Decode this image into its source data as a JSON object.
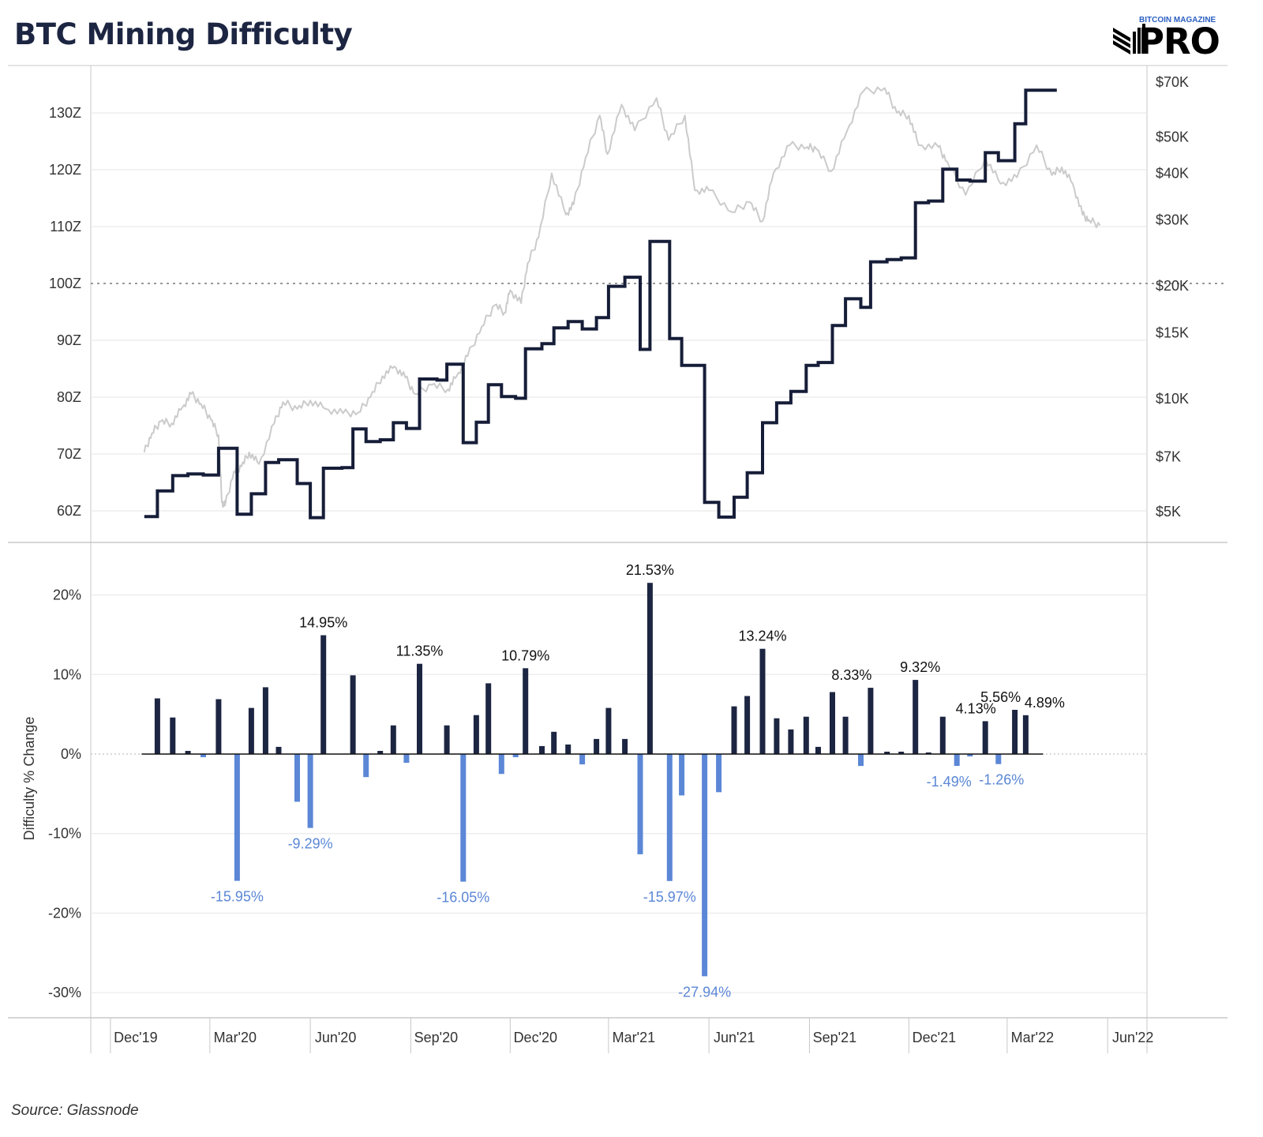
{
  "title": "BTC Mining Difficulty",
  "logo": {
    "top": "BITCOIN MAGAZINE",
    "main": "PRO"
  },
  "source": "Source: Glassnode",
  "colors": {
    "difficulty": "#161d38",
    "price": "#cbcbcb",
    "positive": "#1c2541",
    "negative": "#5b87d6",
    "grid": "#e6e6e6",
    "axis": "#c8c8c8"
  },
  "chart_data": [
    {
      "type": "line",
      "title": "",
      "x_ticks": [
        "Dec'19",
        "Mar'20",
        "Jun'20",
        "Sep'20",
        "Dec'20",
        "Mar'21",
        "Jun'21",
        "Sep'21",
        "Dec'21",
        "Mar'22",
        "Jun'22"
      ],
      "ylabel": "",
      "y_ticks": [
        "60Z",
        "70Z",
        "80Z",
        "90Z",
        "100Z",
        "110Z",
        "120Z",
        "130Z"
      ],
      "ylim": [
        56,
        138
      ],
      "y2_ticks": [
        "$5K",
        "$7K",
        "$10K",
        "$15K",
        "$20K",
        "$30K",
        "$40K",
        "$50K",
        "$70K"
      ],
      "y2_log_scale": true,
      "reference_line": {
        "axis": "y",
        "value": 100,
        "style": "dotted"
      },
      "grid": true,
      "series": [
        {
          "role": "difficulty",
          "axis": "left",
          "step": true,
          "points": [
            [
              "2020-01-01",
              59.0
            ],
            [
              "2020-01-13",
              63.5
            ],
            [
              "2020-01-27",
              66.2
            ],
            [
              "2020-02-10",
              66.5
            ],
            [
              "2020-02-24",
              66.3
            ],
            [
              "2020-03-09",
              71.0
            ],
            [
              "2020-03-26",
              59.4
            ],
            [
              "2020-04-08",
              63.0
            ],
            [
              "2020-04-21",
              68.5
            ],
            [
              "2020-05-03",
              69.0
            ],
            [
              "2020-05-20",
              64.8
            ],
            [
              "2020-06-01",
              58.8
            ],
            [
              "2020-06-13",
              67.5
            ],
            [
              "2020-06-30",
              67.6
            ],
            [
              "2020-07-10",
              74.4
            ],
            [
              "2020-07-22",
              72.2
            ],
            [
              "2020-08-04",
              72.5
            ],
            [
              "2020-08-16",
              75.5
            ],
            [
              "2020-08-28",
              74.5
            ],
            [
              "2020-09-09",
              83.2
            ],
            [
              "2020-09-25",
              83.0
            ],
            [
              "2020-10-04",
              85.8
            ],
            [
              "2020-10-19",
              72.0
            ],
            [
              "2020-10-31",
              75.6
            ],
            [
              "2020-11-11",
              82.2
            ],
            [
              "2020-11-23",
              80.1
            ],
            [
              "2020-12-06",
              79.8
            ],
            [
              "2020-12-15",
              88.5
            ],
            [
              "2020-12-30",
              89.4
            ],
            [
              "2021-01-10",
              92.2
            ],
            [
              "2021-01-23",
              93.3
            ],
            [
              "2021-02-05",
              92.0
            ],
            [
              "2021-02-18",
              94.0
            ],
            [
              "2021-03-01",
              99.5
            ],
            [
              "2021-03-16",
              101.1
            ],
            [
              "2021-03-30",
              88.4
            ],
            [
              "2021-04-08",
              107.4
            ],
            [
              "2021-04-26",
              90.3
            ],
            [
              "2021-05-07",
              85.6
            ],
            [
              "2021-05-28",
              61.5
            ],
            [
              "2021-06-10",
              58.9
            ],
            [
              "2021-06-24",
              62.4
            ],
            [
              "2021-07-06",
              66.7
            ],
            [
              "2021-07-20",
              75.5
            ],
            [
              "2021-08-02",
              79.0
            ],
            [
              "2021-08-15",
              81.0
            ],
            [
              "2021-08-29",
              85.6
            ],
            [
              "2021-09-09",
              86.1
            ],
            [
              "2021-09-22",
              92.6
            ],
            [
              "2021-10-04",
              97.3
            ],
            [
              "2021-10-18",
              95.8
            ],
            [
              "2021-10-27",
              103.8
            ],
            [
              "2021-11-11",
              104.2
            ],
            [
              "2021-11-24",
              104.5
            ],
            [
              "2021-12-07",
              114.2
            ],
            [
              "2021-12-19",
              114.5
            ],
            [
              "2022-01-01",
              120.1
            ],
            [
              "2022-01-14",
              118.2
            ],
            [
              "2022-01-26",
              118.0
            ],
            [
              "2022-02-09",
              123.0
            ],
            [
              "2022-02-21",
              121.6
            ],
            [
              "2022-03-08",
              128.1
            ],
            [
              "2022-03-18",
              134.0
            ],
            [
              "2022-04-01",
              134.0
            ]
          ]
        },
        {
          "role": "price",
          "axis": "right",
          "step": false,
          "points": [
            [
              "2020-01-01",
              7200
            ],
            [
              "2020-01-08",
              8100
            ],
            [
              "2020-01-16",
              8700
            ],
            [
              "2020-01-26",
              8600
            ],
            [
              "2020-02-05",
              9500
            ],
            [
              "2020-02-13",
              10300
            ],
            [
              "2020-02-22",
              9700
            ],
            [
              "2020-03-02",
              8800
            ],
            [
              "2020-03-09",
              8000
            ],
            [
              "2020-03-12",
              5300
            ],
            [
              "2020-03-15",
              5200
            ],
            [
              "2020-03-23",
              6400
            ],
            [
              "2020-03-30",
              6600
            ],
            [
              "2020-04-06",
              7200
            ],
            [
              "2020-04-15",
              6700
            ],
            [
              "2020-04-29",
              8600
            ],
            [
              "2020-05-07",
              9800
            ],
            [
              "2020-05-20",
              9400
            ],
            [
              "2020-06-01",
              9900
            ],
            [
              "2020-06-15",
              9400
            ],
            [
              "2020-07-01",
              9150
            ],
            [
              "2020-07-15",
              9200
            ],
            [
              "2020-07-26",
              10100
            ],
            [
              "2020-08-06",
              11500
            ],
            [
              "2020-08-17",
              12200
            ],
            [
              "2020-08-27",
              11400
            ],
            [
              "2020-09-05",
              10300
            ],
            [
              "2020-09-20",
              10900
            ],
            [
              "2020-10-05",
              10600
            ],
            [
              "2020-10-13",
              11500
            ],
            [
              "2020-10-23",
              13000
            ],
            [
              "2020-11-05",
              15600
            ],
            [
              "2020-11-17",
              17800
            ],
            [
              "2020-11-26",
              17000
            ],
            [
              "2020-12-01",
              19500
            ],
            [
              "2020-12-11",
              18000
            ],
            [
              "2020-12-17",
              23000
            ],
            [
              "2020-12-27",
              27000
            ],
            [
              "2021-01-08",
              40000
            ],
            [
              "2021-01-21",
              31000
            ],
            [
              "2021-01-28",
              33000
            ],
            [
              "2021-02-08",
              44000
            ],
            [
              "2021-02-21",
              57000
            ],
            [
              "2021-02-28",
              45000
            ],
            [
              "2021-03-13",
              61000
            ],
            [
              "2021-03-25",
              52000
            ],
            [
              "2021-04-14",
              63500
            ],
            [
              "2021-04-25",
              49000
            ],
            [
              "2021-05-10",
              57000
            ],
            [
              "2021-05-19",
              36000
            ],
            [
              "2021-06-01",
              36000
            ],
            [
              "2021-06-22",
              31500
            ],
            [
              "2021-07-08",
              33500
            ],
            [
              "2021-07-20",
              29800
            ],
            [
              "2021-07-30",
              40000
            ],
            [
              "2021-08-14",
              47500
            ],
            [
              "2021-08-30",
              47000
            ],
            [
              "2021-09-07",
              46500
            ],
            [
              "2021-09-21",
              40500
            ],
            [
              "2021-10-05",
              51500
            ],
            [
              "2021-10-20",
              66000
            ],
            [
              "2021-11-09",
              67500
            ],
            [
              "2021-11-20",
              58000
            ],
            [
              "2021-12-01",
              57000
            ],
            [
              "2021-12-10",
              47500
            ],
            [
              "2021-12-28",
              47000
            ],
            [
              "2022-01-05",
              43000
            ],
            [
              "2022-01-22",
              35000
            ],
            [
              "2022-02-09",
              44000
            ],
            [
              "2022-02-23",
              37500
            ],
            [
              "2022-03-10",
              39000
            ],
            [
              "2022-03-28",
              47500
            ],
            [
              "2022-04-11",
              39500
            ],
            [
              "2022-04-20",
              41500
            ],
            [
              "2022-04-30",
              37500
            ],
            [
              "2022-05-09",
              31000
            ],
            [
              "2022-05-15",
              30000
            ],
            [
              "2022-05-25",
              29000
            ]
          ]
        }
      ]
    },
    {
      "type": "bar",
      "title": "",
      "x_ticks": [
        "Dec'19",
        "Mar'20",
        "Jun'20",
        "Sep'20",
        "Dec'20",
        "Mar'21",
        "Jun'21",
        "Sep'21",
        "Dec'21",
        "Mar'22",
        "Jun'22"
      ],
      "ylabel": "Difficulty % Change",
      "y_ticks": [
        "20%",
        "10%",
        "0%",
        "-10%",
        "-20%",
        "-30%"
      ],
      "ylim": [
        -33,
        25
      ],
      "grid": true,
      "bars": [
        [
          "2020-01-13",
          7.0
        ],
        [
          "2020-01-27",
          4.6
        ],
        [
          "2020-02-10",
          0.4
        ],
        [
          "2020-02-24",
          -0.4
        ],
        [
          "2020-03-09",
          6.9
        ],
        [
          "2020-03-26",
          -15.95
        ],
        [
          "2020-04-08",
          5.8
        ],
        [
          "2020-04-21",
          8.4
        ],
        [
          "2020-05-03",
          0.9
        ],
        [
          "2020-05-20",
          -6.0
        ],
        [
          "2020-06-01",
          -9.29
        ],
        [
          "2020-06-13",
          14.95
        ],
        [
          "2020-06-30",
          0.0
        ],
        [
          "2020-07-10",
          9.9
        ],
        [
          "2020-07-22",
          -2.9
        ],
        [
          "2020-08-04",
          0.4
        ],
        [
          "2020-08-16",
          3.6
        ],
        [
          "2020-08-28",
          -1.1
        ],
        [
          "2020-09-09",
          11.35
        ],
        [
          "2020-09-25",
          0.0
        ],
        [
          "2020-10-04",
          3.6
        ],
        [
          "2020-10-19",
          -16.05
        ],
        [
          "2020-10-31",
          4.9
        ],
        [
          "2020-11-11",
          8.9
        ],
        [
          "2020-11-23",
          -2.5
        ],
        [
          "2020-12-06",
          -0.4
        ],
        [
          "2020-12-15",
          10.79
        ],
        [
          "2020-12-30",
          1.0
        ],
        [
          "2021-01-10",
          2.8
        ],
        [
          "2021-01-23",
          1.2
        ],
        [
          "2021-02-05",
          -1.3
        ],
        [
          "2021-02-18",
          1.9
        ],
        [
          "2021-03-01",
          5.8
        ],
        [
          "2021-03-16",
          1.9
        ],
        [
          "2021-03-30",
          -12.6
        ],
        [
          "2021-04-08",
          21.53
        ],
        [
          "2021-04-26",
          -15.97
        ],
        [
          "2021-05-07",
          -5.2
        ],
        [
          "2021-05-28",
          -27.94
        ],
        [
          "2021-06-10",
          -4.8
        ],
        [
          "2021-06-24",
          6.0
        ],
        [
          "2021-07-06",
          7.3
        ],
        [
          "2021-07-20",
          13.24
        ],
        [
          "2021-08-02",
          4.5
        ],
        [
          "2021-08-15",
          3.1
        ],
        [
          "2021-08-29",
          4.7
        ],
        [
          "2021-09-09",
          0.9
        ],
        [
          "2021-09-22",
          7.8
        ],
        [
          "2021-10-04",
          4.7
        ],
        [
          "2021-10-18",
          -1.5
        ],
        [
          "2021-10-27",
          8.33
        ],
        [
          "2021-11-11",
          0.3
        ],
        [
          "2021-11-24",
          0.3
        ],
        [
          "2021-12-07",
          9.32
        ],
        [
          "2021-12-19",
          0.2
        ],
        [
          "2022-01-01",
          4.7
        ],
        [
          "2022-01-14",
          -1.49
        ],
        [
          "2022-01-26",
          -0.3
        ],
        [
          "2022-02-09",
          4.13
        ],
        [
          "2022-02-21",
          -1.26
        ],
        [
          "2022-03-08",
          5.56
        ],
        [
          "2022-03-18",
          4.89
        ]
      ],
      "data_labels": [
        {
          "date": "2020-03-26",
          "text": "-15.95%"
        },
        {
          "date": "2020-06-01",
          "text": "-9.29%"
        },
        {
          "date": "2020-06-13",
          "text": "14.95%"
        },
        {
          "date": "2020-09-09",
          "text": "11.35%"
        },
        {
          "date": "2020-10-19",
          "text": "-16.05%"
        },
        {
          "date": "2020-12-15",
          "text": "10.79%"
        },
        {
          "date": "2021-04-08",
          "text": "21.53%"
        },
        {
          "date": "2021-04-26",
          "text": "-15.97%"
        },
        {
          "date": "2021-05-28",
          "text": "-27.94%"
        },
        {
          "date": "2021-07-20",
          "text": "13.24%"
        },
        {
          "date": "2021-10-27",
          "text": "8.33%"
        },
        {
          "date": "2021-12-07",
          "text": "9.32%"
        },
        {
          "date": "2022-01-14",
          "text": "-1.49%"
        },
        {
          "date": "2022-02-09",
          "text": "4.13%"
        },
        {
          "date": "2022-02-21",
          "text": "-1.26%"
        },
        {
          "date": "2022-03-08",
          "text": "5.56%"
        },
        {
          "date": "2022-03-18",
          "text": "4.89%"
        }
      ]
    }
  ]
}
